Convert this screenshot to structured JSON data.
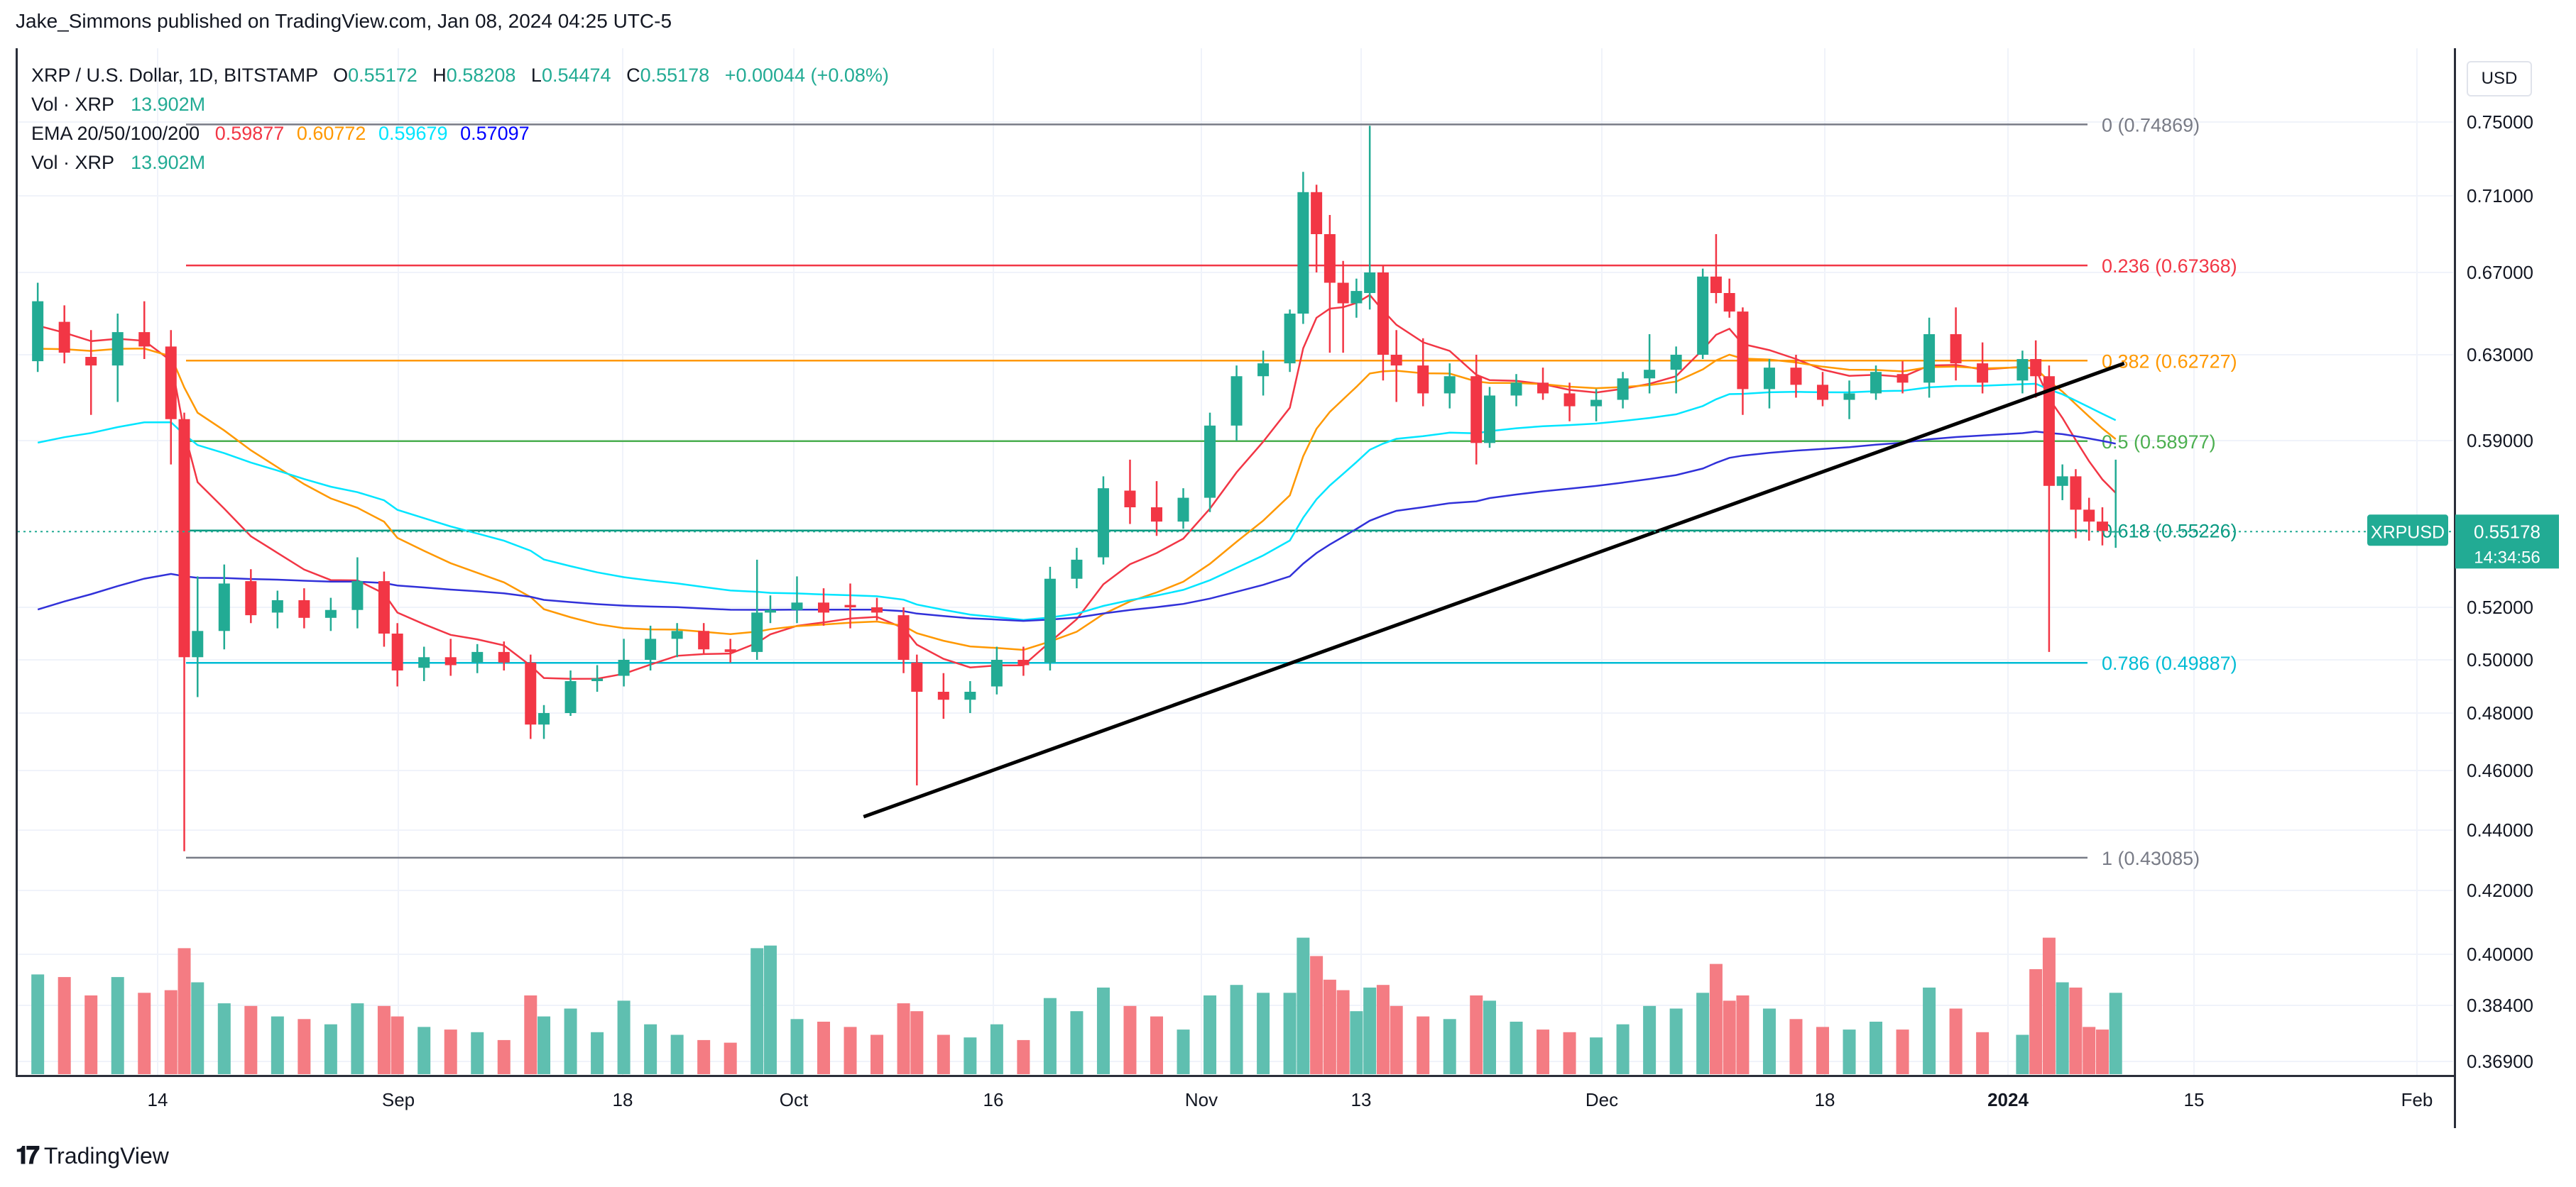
{
  "publisher": "Jake_Simmons published on TradingView.com, Jan 08, 2024 04:25 UTC-5",
  "legend": {
    "symbol": "XRP / U.S. Dollar, 1D, BITSTAMP",
    "o_label": "O",
    "o": "0.55172",
    "h_label": "H",
    "h": "0.58208",
    "l_label": "L",
    "l": "0.54474",
    "c_label": "C",
    "c": "0.55178",
    "change": "+0.00044 (+0.08%)",
    "vol_label": "Vol · XRP",
    "vol_value": "13.902M",
    "ema_label": "EMA 20/50/100/200",
    "ema20": "0.59877",
    "ema50": "0.60772",
    "ema100": "0.59679",
    "ema200": "0.57097",
    "vol_label2": "Vol · XRP",
    "vol_value2": "13.902M"
  },
  "currency": "USD",
  "brand": "TradingView",
  "current_price_tag": {
    "symbol": "XRPUSD",
    "price": "0.55178",
    "countdown": "14:34:56"
  },
  "colors": {
    "up": "#22ab94",
    "down": "#f23645",
    "up_vol": "#5fbfb0",
    "down_vol": "#f47c83",
    "ema20": "#f23645",
    "ema50": "#ff9800",
    "ema100": "#00e5ff",
    "ema200": "#3131d9"
  },
  "chart_data": {
    "type": "candlestick",
    "title": "XRP / U.S. Dollar, 1D, BITSTAMP",
    "y_ticks": [
      "0.75000",
      "0.71000",
      "0.67000",
      "0.63000",
      "0.59000",
      "0.52000",
      "0.50000",
      "0.48000",
      "0.46000",
      "0.44000",
      "0.42000",
      "0.40000",
      "0.38400",
      "0.36900"
    ],
    "x_ticks": [
      "14",
      "Sep",
      "18",
      "Oct",
      "16",
      "Nov",
      "13",
      "Dec",
      "18",
      "2024",
      "15",
      "Feb"
    ],
    "fib_levels": [
      {
        "label": "0 (0.74869)",
        "value": 0.74869,
        "color": "#787b86"
      },
      {
        "label": "0.236 (0.67368)",
        "value": 0.67368,
        "color": "#f23645"
      },
      {
        "label": "0.382 (0.62727)",
        "value": 0.62727,
        "color": "#ff9800"
      },
      {
        "label": "0.5 (0.58977)",
        "value": 0.58977,
        "color": "#4caf50"
      },
      {
        "label": "0.618 (0.55226)",
        "value": 0.55226,
        "color": "#089981"
      },
      {
        "label": "0.786 (0.49887)",
        "value": 0.49887,
        "color": "#00bcd4"
      },
      {
        "label": "1 (0.43085)",
        "value": 0.43085,
        "color": "#787b86"
      }
    ],
    "trendline": {
      "from": {
        "date": "2023-10-06",
        "price": 0.454
      },
      "to": {
        "date": "2024-01-08",
        "price": 0.626
      }
    },
    "candles": [
      {
        "date": "2023-08-05",
        "o": 0.627,
        "h": 0.665,
        "l": 0.622,
        "c": 0.656,
        "v": 0.38
      },
      {
        "date": "2023-08-07",
        "o": 0.646,
        "h": 0.654,
        "l": 0.626,
        "c": 0.631,
        "v": 0.37
      },
      {
        "date": "2023-08-09",
        "o": 0.629,
        "h": 0.642,
        "l": 0.602,
        "c": 0.625,
        "v": 0.3
      },
      {
        "date": "2023-08-11",
        "o": 0.625,
        "h": 0.65,
        "l": 0.608,
        "c": 0.641,
        "v": 0.37
      },
      {
        "date": "2023-08-13",
        "o": 0.641,
        "h": 0.656,
        "l": 0.628,
        "c": 0.634,
        "v": 0.31
      },
      {
        "date": "2023-08-15",
        "o": 0.634,
        "h": 0.642,
        "l": 0.58,
        "c": 0.6,
        "v": 0.32
      },
      {
        "date": "2023-08-16",
        "o": 0.6,
        "h": 0.603,
        "l": 0.433,
        "c": 0.501,
        "v": 0.48
      },
      {
        "date": "2023-08-17",
        "o": 0.501,
        "h": 0.533,
        "l": 0.486,
        "c": 0.511,
        "v": 0.35
      },
      {
        "date": "2023-08-19",
        "o": 0.511,
        "h": 0.538,
        "l": 0.504,
        "c": 0.53,
        "v": 0.27
      },
      {
        "date": "2023-08-21",
        "o": 0.531,
        "h": 0.536,
        "l": 0.514,
        "c": 0.517,
        "v": 0.26
      },
      {
        "date": "2023-08-23",
        "o": 0.518,
        "h": 0.527,
        "l": 0.512,
        "c": 0.523,
        "v": 0.22
      },
      {
        "date": "2023-08-25",
        "o": 0.523,
        "h": 0.528,
        "l": 0.512,
        "c": 0.516,
        "v": 0.21
      },
      {
        "date": "2023-08-27",
        "o": 0.516,
        "h": 0.524,
        "l": 0.511,
        "c": 0.519,
        "v": 0.19
      },
      {
        "date": "2023-08-29",
        "o": 0.519,
        "h": 0.541,
        "l": 0.512,
        "c": 0.531,
        "v": 0.27
      },
      {
        "date": "2023-08-31",
        "o": 0.531,
        "h": 0.535,
        "l": 0.505,
        "c": 0.51,
        "v": 0.26
      },
      {
        "date": "2023-09-01",
        "o": 0.51,
        "h": 0.514,
        "l": 0.49,
        "c": 0.496,
        "v": 0.22
      },
      {
        "date": "2023-09-03",
        "o": 0.497,
        "h": 0.505,
        "l": 0.492,
        "c": 0.501,
        "v": 0.18
      },
      {
        "date": "2023-09-05",
        "o": 0.501,
        "h": 0.508,
        "l": 0.494,
        "c": 0.498,
        "v": 0.17
      },
      {
        "date": "2023-09-07",
        "o": 0.499,
        "h": 0.506,
        "l": 0.495,
        "c": 0.503,
        "v": 0.16
      },
      {
        "date": "2023-09-09",
        "o": 0.503,
        "h": 0.507,
        "l": 0.496,
        "c": 0.499,
        "v": 0.13
      },
      {
        "date": "2023-09-11",
        "o": 0.499,
        "h": 0.502,
        "l": 0.471,
        "c": 0.476,
        "v": 0.3
      },
      {
        "date": "2023-09-12",
        "o": 0.476,
        "h": 0.483,
        "l": 0.471,
        "c": 0.48,
        "v": 0.22
      },
      {
        "date": "2023-09-14",
        "o": 0.48,
        "h": 0.496,
        "l": 0.479,
        "c": 0.492,
        "v": 0.25
      },
      {
        "date": "2023-09-16",
        "o": 0.492,
        "h": 0.498,
        "l": 0.488,
        "c": 0.493,
        "v": 0.16
      },
      {
        "date": "2023-09-18",
        "o": 0.494,
        "h": 0.508,
        "l": 0.49,
        "c": 0.5,
        "v": 0.28
      },
      {
        "date": "2023-09-20",
        "o": 0.5,
        "h": 0.513,
        "l": 0.496,
        "c": 0.508,
        "v": 0.19
      },
      {
        "date": "2023-09-22",
        "o": 0.508,
        "h": 0.514,
        "l": 0.501,
        "c": 0.511,
        "v": 0.15
      },
      {
        "date": "2023-09-24",
        "o": 0.511,
        "h": 0.514,
        "l": 0.502,
        "c": 0.504,
        "v": 0.13
      },
      {
        "date": "2023-09-26",
        "o": 0.504,
        "h": 0.508,
        "l": 0.499,
        "c": 0.503,
        "v": 0.12
      },
      {
        "date": "2023-09-28",
        "o": 0.503,
        "h": 0.54,
        "l": 0.5,
        "c": 0.518,
        "v": 0.48
      },
      {
        "date": "2023-09-29",
        "o": 0.518,
        "h": 0.525,
        "l": 0.514,
        "c": 0.519,
        "v": 0.49
      },
      {
        "date": "2023-10-01",
        "o": 0.519,
        "h": 0.533,
        "l": 0.514,
        "c": 0.522,
        "v": 0.21
      },
      {
        "date": "2023-10-03",
        "o": 0.522,
        "h": 0.528,
        "l": 0.513,
        "c": 0.518,
        "v": 0.2
      },
      {
        "date": "2023-10-05",
        "o": 0.521,
        "h": 0.53,
        "l": 0.512,
        "c": 0.52,
        "v": 0.18
      },
      {
        "date": "2023-10-07",
        "o": 0.52,
        "h": 0.524,
        "l": 0.515,
        "c": 0.518,
        "v": 0.15
      },
      {
        "date": "2023-10-09",
        "o": 0.517,
        "h": 0.52,
        "l": 0.495,
        "c": 0.5,
        "v": 0.27
      },
      {
        "date": "2023-10-10",
        "o": 0.499,
        "h": 0.502,
        "l": 0.455,
        "c": 0.488,
        "v": 0.24
      },
      {
        "date": "2023-10-12",
        "o": 0.488,
        "h": 0.495,
        "l": 0.478,
        "c": 0.485,
        "v": 0.15
      },
      {
        "date": "2023-10-14",
        "o": 0.485,
        "h": 0.492,
        "l": 0.48,
        "c": 0.488,
        "v": 0.14
      },
      {
        "date": "2023-10-16",
        "o": 0.49,
        "h": 0.505,
        "l": 0.487,
        "c": 0.5,
        "v": 0.19
      },
      {
        "date": "2023-10-18",
        "o": 0.5,
        "h": 0.505,
        "l": 0.494,
        "c": 0.498,
        "v": 0.13
      },
      {
        "date": "2023-10-20",
        "o": 0.499,
        "h": 0.537,
        "l": 0.496,
        "c": 0.532,
        "v": 0.29
      },
      {
        "date": "2023-10-22",
        "o": 0.532,
        "h": 0.545,
        "l": 0.528,
        "c": 0.54,
        "v": 0.24
      },
      {
        "date": "2023-10-24",
        "o": 0.541,
        "h": 0.575,
        "l": 0.538,
        "c": 0.57,
        "v": 0.33
      },
      {
        "date": "2023-10-26",
        "o": 0.569,
        "h": 0.582,
        "l": 0.555,
        "c": 0.562,
        "v": 0.26
      },
      {
        "date": "2023-10-28",
        "o": 0.562,
        "h": 0.573,
        "l": 0.55,
        "c": 0.556,
        "v": 0.22
      },
      {
        "date": "2023-10-30",
        "o": 0.556,
        "h": 0.57,
        "l": 0.553,
        "c": 0.566,
        "v": 0.17
      },
      {
        "date": "2023-11-01",
        "o": 0.566,
        "h": 0.603,
        "l": 0.56,
        "c": 0.597,
        "v": 0.3
      },
      {
        "date": "2023-11-03",
        "o": 0.597,
        "h": 0.625,
        "l": 0.59,
        "c": 0.62,
        "v": 0.34
      },
      {
        "date": "2023-11-05",
        "o": 0.62,
        "h": 0.632,
        "l": 0.611,
        "c": 0.626,
        "v": 0.31
      },
      {
        "date": "2023-11-07",
        "o": 0.626,
        "h": 0.652,
        "l": 0.622,
        "c": 0.65,
        "v": 0.31
      },
      {
        "date": "2023-11-08",
        "o": 0.65,
        "h": 0.723,
        "l": 0.645,
        "c": 0.712,
        "v": 0.52
      },
      {
        "date": "2023-11-09",
        "o": 0.712,
        "h": 0.716,
        "l": 0.67,
        "c": 0.69,
        "v": 0.45
      },
      {
        "date": "2023-11-10",
        "o": 0.69,
        "h": 0.7,
        "l": 0.631,
        "c": 0.665,
        "v": 0.36
      },
      {
        "date": "2023-11-11",
        "o": 0.665,
        "h": 0.676,
        "l": 0.631,
        "c": 0.655,
        "v": 0.32
      },
      {
        "date": "2023-11-12",
        "o": 0.655,
        "h": 0.667,
        "l": 0.648,
        "c": 0.661,
        "v": 0.24
      },
      {
        "date": "2023-11-13",
        "o": 0.66,
        "h": 0.748,
        "l": 0.652,
        "c": 0.67,
        "v": 0.33
      },
      {
        "date": "2023-11-14",
        "o": 0.67,
        "h": 0.674,
        "l": 0.618,
        "c": 0.63,
        "v": 0.34
      },
      {
        "date": "2023-11-15",
        "o": 0.63,
        "h": 0.642,
        "l": 0.608,
        "c": 0.625,
        "v": 0.26
      },
      {
        "date": "2023-11-17",
        "o": 0.625,
        "h": 0.638,
        "l": 0.606,
        "c": 0.612,
        "v": 0.22
      },
      {
        "date": "2023-11-19",
        "o": 0.612,
        "h": 0.626,
        "l": 0.605,
        "c": 0.62,
        "v": 0.21
      },
      {
        "date": "2023-11-21",
        "o": 0.62,
        "h": 0.63,
        "l": 0.58,
        "c": 0.589,
        "v": 0.3
      },
      {
        "date": "2023-11-22",
        "o": 0.589,
        "h": 0.615,
        "l": 0.587,
        "c": 0.611,
        "v": 0.28
      },
      {
        "date": "2023-11-24",
        "o": 0.611,
        "h": 0.621,
        "l": 0.606,
        "c": 0.617,
        "v": 0.2
      },
      {
        "date": "2023-11-26",
        "o": 0.617,
        "h": 0.624,
        "l": 0.609,
        "c": 0.612,
        "v": 0.17
      },
      {
        "date": "2023-11-28",
        "o": 0.612,
        "h": 0.617,
        "l": 0.599,
        "c": 0.606,
        "v": 0.16
      },
      {
        "date": "2023-11-30",
        "o": 0.606,
        "h": 0.614,
        "l": 0.599,
        "c": 0.609,
        "v": 0.14
      },
      {
        "date": "2023-12-02",
        "o": 0.609,
        "h": 0.622,
        "l": 0.605,
        "c": 0.619,
        "v": 0.19
      },
      {
        "date": "2023-12-04",
        "o": 0.619,
        "h": 0.64,
        "l": 0.612,
        "c": 0.623,
        "v": 0.26
      },
      {
        "date": "2023-12-06",
        "o": 0.623,
        "h": 0.634,
        "l": 0.612,
        "c": 0.63,
        "v": 0.25
      },
      {
        "date": "2023-12-08",
        "o": 0.63,
        "h": 0.672,
        "l": 0.628,
        "c": 0.668,
        "v": 0.31
      },
      {
        "date": "2023-12-09",
        "o": 0.668,
        "h": 0.69,
        "l": 0.655,
        "c": 0.66,
        "v": 0.42
      },
      {
        "date": "2023-12-10",
        "o": 0.66,
        "h": 0.667,
        "l": 0.648,
        "c": 0.651,
        "v": 0.28
      },
      {
        "date": "2023-12-11",
        "o": 0.651,
        "h": 0.653,
        "l": 0.602,
        "c": 0.614,
        "v": 0.3
      },
      {
        "date": "2023-12-13",
        "o": 0.614,
        "h": 0.628,
        "l": 0.605,
        "c": 0.624,
        "v": 0.25
      },
      {
        "date": "2023-12-15",
        "o": 0.624,
        "h": 0.63,
        "l": 0.61,
        "c": 0.616,
        "v": 0.21
      },
      {
        "date": "2023-12-17",
        "o": 0.616,
        "h": 0.622,
        "l": 0.606,
        "c": 0.609,
        "v": 0.18
      },
      {
        "date": "2023-12-19",
        "o": 0.609,
        "h": 0.618,
        "l": 0.6,
        "c": 0.612,
        "v": 0.17
      },
      {
        "date": "2023-12-21",
        "o": 0.612,
        "h": 0.625,
        "l": 0.609,
        "c": 0.622,
        "v": 0.2
      },
      {
        "date": "2023-12-23",
        "o": 0.621,
        "h": 0.627,
        "l": 0.612,
        "c": 0.617,
        "v": 0.17
      },
      {
        "date": "2023-12-25",
        "o": 0.617,
        "h": 0.648,
        "l": 0.61,
        "c": 0.64,
        "v": 0.33
      },
      {
        "date": "2023-12-27",
        "o": 0.64,
        "h": 0.653,
        "l": 0.618,
        "c": 0.626,
        "v": 0.25
      },
      {
        "date": "2023-12-29",
        "o": 0.626,
        "h": 0.636,
        "l": 0.612,
        "c": 0.617,
        "v": 0.16
      },
      {
        "date": "2024-01-01",
        "o": 0.618,
        "h": 0.632,
        "l": 0.612,
        "c": 0.628,
        "v": 0.15
      },
      {
        "date": "2024-01-02",
        "o": 0.628,
        "h": 0.637,
        "l": 0.61,
        "c": 0.62,
        "v": 0.4
      },
      {
        "date": "2024-01-03",
        "o": 0.62,
        "h": 0.625,
        "l": 0.503,
        "c": 0.571,
        "v": 0.52
      },
      {
        "date": "2024-01-04",
        "o": 0.571,
        "h": 0.58,
        "l": 0.565,
        "c": 0.575,
        "v": 0.35
      },
      {
        "date": "2024-01-05",
        "o": 0.575,
        "h": 0.578,
        "l": 0.549,
        "c": 0.561,
        "v": 0.33
      },
      {
        "date": "2024-01-06",
        "o": 0.561,
        "h": 0.566,
        "l": 0.548,
        "c": 0.556,
        "v": 0.18
      },
      {
        "date": "2024-01-07",
        "o": 0.556,
        "h": 0.562,
        "l": 0.546,
        "c": 0.552,
        "v": 0.17
      },
      {
        "date": "2024-01-08",
        "o": 0.552,
        "h": 0.582,
        "l": 0.545,
        "c": 0.552,
        "v": 0.31
      }
    ]
  }
}
